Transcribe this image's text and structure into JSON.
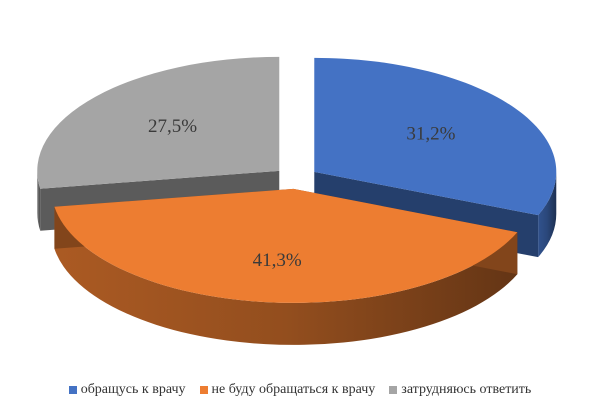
{
  "chart_data": {
    "type": "pie",
    "title": "",
    "series": [
      {
        "name": "",
        "categories": [
          "обращусь к врачу",
          "не буду обращаться к врачу",
          "затрудняюсь ответить"
        ],
        "values": [
          31.2,
          41.3,
          27.5
        ],
        "labels": [
          "31,2%",
          "41,3%",
          "27,5%"
        ]
      }
    ],
    "exploded": true,
    "3d": true,
    "legend_position": "bottom",
    "colors": [
      "#4472C4",
      "#ED7D31",
      "#A5A5A5"
    ]
  }
}
